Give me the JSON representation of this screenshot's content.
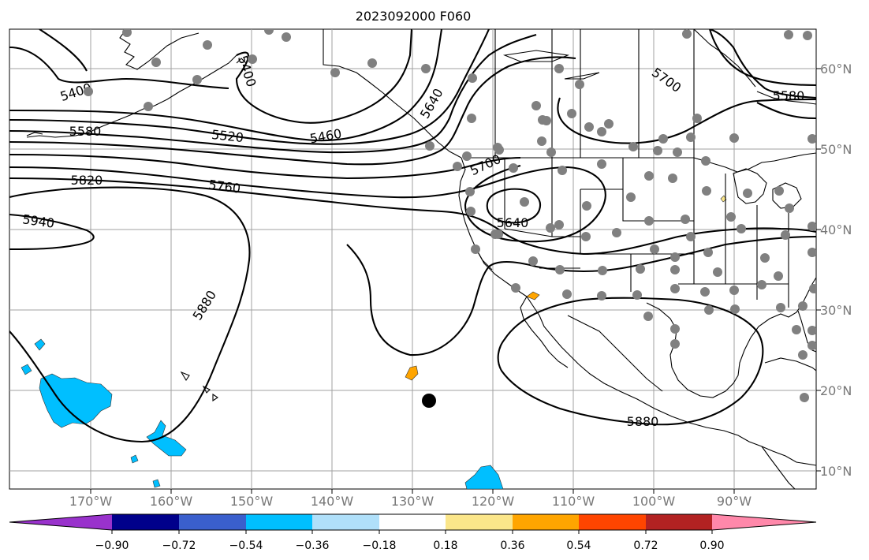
{
  "title": "2023092000 F060",
  "lon_labels": [
    "170°W",
    "160°W",
    "150°W",
    "140°W",
    "130°W",
    "120°W",
    "110°W",
    "100°W",
    "90°W"
  ],
  "lat_labels": [
    "60°N",
    "50°N",
    "40°N",
    "30°N",
    "20°N",
    "10°N"
  ],
  "contour_labels": [
    "5400",
    "5400",
    "5580",
    "5580",
    "5520",
    "5460",
    "5640",
    "5700",
    "5700",
    "5820",
    "5760",
    "5940",
    "5640",
    "5880",
    "5880"
  ],
  "colorbar": {
    "ticks": [
      "−0.90",
      "−0.72",
      "−0.54",
      "−0.36",
      "−0.18",
      "0.18",
      "0.36",
      "0.54",
      "0.72",
      "0.90"
    ],
    "colors": [
      "#9932cc",
      "#00008b",
      "#3a5fcd",
      "#00bfff",
      "#b0e0fa",
      "#ffffff",
      "#fbe68a",
      "#ffa500",
      "#ff4500",
      "#b22222",
      "#ff88aa"
    ]
  },
  "colors": {
    "grid": "#a0a0a0",
    "contour": "#000000",
    "station": "#808080",
    "negative_field": "#00bfff",
    "positive_field": "#ffa500"
  }
}
